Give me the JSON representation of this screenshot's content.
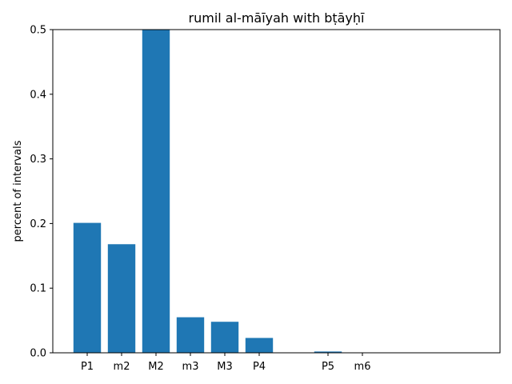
{
  "chart_data": {
    "type": "bar",
    "title": "rumil al-māīyah with bṭāyḥī",
    "xlabel": "",
    "ylabel": "percent of intervals",
    "ylim": [
      0,
      0.5
    ],
    "xlim": [
      -1.0,
      12.0
    ],
    "yticks": [
      0.0,
      0.1,
      0.2,
      0.3,
      0.4,
      0.5
    ],
    "ytick_labels": [
      "0.0",
      "0.1",
      "0.2",
      "0.3",
      "0.4",
      "0.5"
    ],
    "categories": [
      "P1",
      "m2",
      "M2",
      "m3",
      "M3",
      "P4",
      "P5",
      "m6"
    ],
    "positions": [
      0,
      1,
      2,
      3,
      4,
      5,
      7,
      8
    ],
    "values": [
      0.201,
      0.168,
      0.5,
      0.055,
      0.048,
      0.023,
      0.002,
      0.0
    ],
    "grid": false,
    "bar_color": "#1f77b4",
    "spine_color": "#000000"
  }
}
